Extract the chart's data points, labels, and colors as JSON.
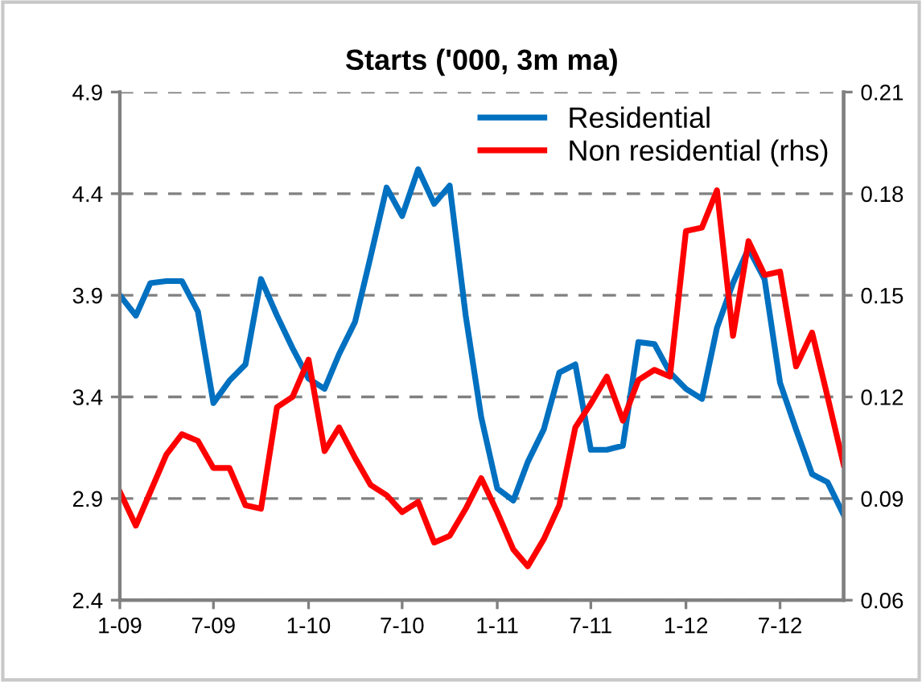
{
  "chart_data": {
    "type": "line",
    "title": "Starts ('000, 3m ma)",
    "x": [
      "2009-01",
      "2009-02",
      "2009-03",
      "2009-04",
      "2009-05",
      "2009-06",
      "2009-07",
      "2009-08",
      "2009-09",
      "2009-10",
      "2009-11",
      "2009-12",
      "2010-01",
      "2010-02",
      "2010-03",
      "2010-04",
      "2010-05",
      "2010-06",
      "2010-07",
      "2010-08",
      "2010-09",
      "2010-10",
      "2010-11",
      "2010-12",
      "2011-01",
      "2011-02",
      "2011-03",
      "2011-04",
      "2011-05",
      "2011-06",
      "2011-07",
      "2011-08",
      "2011-09",
      "2011-10",
      "2011-11",
      "2011-12",
      "2012-01",
      "2012-02",
      "2012-03",
      "2012-04",
      "2012-05",
      "2012-06",
      "2012-07",
      "2012-08",
      "2012-09",
      "2012-10",
      "2012-11"
    ],
    "series": [
      {
        "name": "Residential",
        "color": "#0070c0",
        "values": [
          3.9,
          3.8,
          3.96,
          3.97,
          3.97,
          3.82,
          3.37,
          3.48,
          3.56,
          3.98,
          3.8,
          3.64,
          3.49,
          3.44,
          3.61,
          3.77,
          4.09,
          4.43,
          4.29,
          4.52,
          4.35,
          4.44,
          3.8,
          3.3,
          2.95,
          2.89,
          3.08,
          3.24,
          3.52,
          3.56,
          3.14,
          3.14,
          3.16,
          3.67,
          3.66,
          3.52,
          3.44,
          3.39,
          3.74,
          3.96,
          4.13,
          3.98,
          3.47,
          3.24,
          3.02,
          2.98,
          2.82
        ]
      },
      {
        "name": "Non residential (rhs)",
        "color": "#ff0000",
        "axis": "y2",
        "values": [
          0.092,
          0.082,
          0.092,
          0.103,
          0.109,
          0.107,
          0.099,
          0.099,
          0.088,
          0.087,
          0.117,
          0.12,
          0.131,
          0.104,
          0.111,
          0.102,
          0.094,
          0.091,
          0.086,
          0.089,
          0.077,
          0.079,
          0.087,
          0.096,
          0.086,
          0.075,
          0.07,
          0.078,
          0.088,
          0.111,
          0.118,
          0.126,
          0.113,
          0.125,
          0.128,
          0.126,
          0.169,
          0.17,
          0.181,
          0.138,
          0.166,
          0.156,
          0.157,
          0.129,
          0.139,
          0.12,
          0.1
        ]
      }
    ],
    "xlim": [
      "2009-01",
      "2012-11"
    ],
    "xticks": [
      {
        "value": "2009-01",
        "label": "1-09"
      },
      {
        "value": "2009-07",
        "label": "7-09"
      },
      {
        "value": "2010-01",
        "label": "1-10"
      },
      {
        "value": "2010-07",
        "label": "7-10"
      },
      {
        "value": "2011-01",
        "label": "1-11"
      },
      {
        "value": "2011-07",
        "label": "7-11"
      },
      {
        "value": "2012-01",
        "label": "1-12"
      },
      {
        "value": "2012-07",
        "label": "7-12"
      }
    ],
    "ylim": [
      2.4,
      4.9
    ],
    "yticks": [
      2.4,
      2.9,
      3.4,
      3.9,
      4.4,
      4.9
    ],
    "y2lim": [
      0.06,
      0.21
    ],
    "y2ticks": [
      0.06,
      0.09,
      0.12,
      0.15,
      0.18,
      0.21
    ],
    "grid": "y",
    "legend": "top right",
    "line_style": "solid"
  }
}
